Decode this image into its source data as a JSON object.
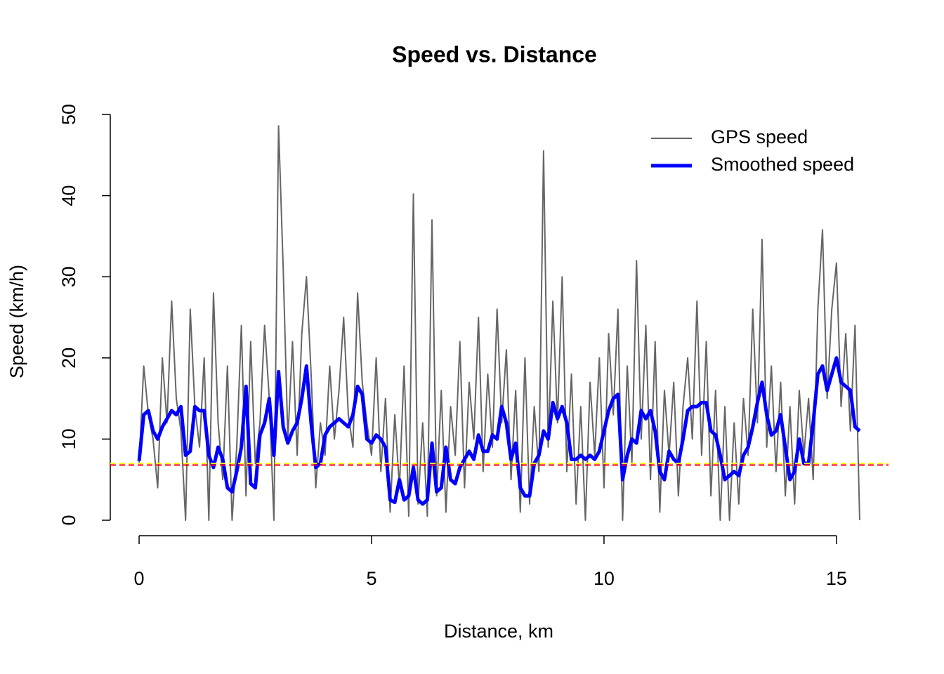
{
  "chart_data": {
    "type": "line",
    "title": "Speed vs. Distance",
    "x_label": "Distance, km",
    "y_label": "Speed (km/h)",
    "x": [
      0,
      0.1,
      0.2,
      0.3,
      0.4,
      0.5,
      0.6,
      0.7,
      0.8,
      0.9,
      1,
      1.1,
      1.2,
      1.3,
      1.4,
      1.5,
      1.6,
      1.7,
      1.8,
      1.9,
      2,
      2.1,
      2.2,
      2.3,
      2.4,
      2.5,
      2.6,
      2.7,
      2.8,
      2.9,
      3,
      3.1,
      3.2,
      3.3,
      3.4,
      3.5,
      3.6,
      3.7,
      3.8,
      3.9,
      4,
      4.1,
      4.2,
      4.3,
      4.4,
      4.5,
      4.6,
      4.7,
      4.8,
      4.9,
      5,
      5.1,
      5.2,
      5.3,
      5.4,
      5.5,
      5.6,
      5.7,
      5.8,
      5.9,
      6,
      6.1,
      6.2,
      6.3,
      6.4,
      6.5,
      6.6,
      6.7,
      6.8,
      6.9,
      7,
      7.1,
      7.2,
      7.3,
      7.4,
      7.5,
      7.6,
      7.7,
      7.8,
      7.9,
      8,
      8.1,
      8.2,
      8.3,
      8.4,
      8.5,
      8.6,
      8.7,
      8.8,
      8.9,
      9,
      9.1,
      9.2,
      9.3,
      9.4,
      9.5,
      9.6,
      9.7,
      9.8,
      9.9,
      10,
      10.1,
      10.2,
      10.3,
      10.4,
      10.5,
      10.6,
      10.7,
      10.8,
      10.9,
      11,
      11.1,
      11.2,
      11.3,
      11.4,
      11.5,
      11.6,
      11.7,
      11.8,
      11.9,
      12,
      12.1,
      12.2,
      12.3,
      12.4,
      12.5,
      12.6,
      12.7,
      12.8,
      12.9,
      13,
      13.1,
      13.2,
      13.3,
      13.4,
      13.5,
      13.6,
      13.7,
      13.8,
      13.9,
      14,
      14.1,
      14.2,
      14.3,
      14.4,
      14.5,
      14.6,
      14.7,
      14.8,
      14.9,
      15,
      15.1,
      15.2,
      15.3,
      15.4,
      15.5
    ],
    "series": [
      {
        "name": "GPS speed",
        "color": "#666666",
        "width": 2,
        "values": [
          7,
          19,
          13,
          10,
          4,
          20,
          12,
          27,
          15,
          11,
          0,
          26,
          14,
          9,
          20,
          0,
          28,
          12,
          5,
          19,
          0,
          9,
          24,
          3,
          22,
          7,
          12,
          24,
          15,
          0,
          48.6,
          31,
          10,
          22,
          8,
          23,
          30,
          18,
          4,
          12,
          8,
          19,
          10,
          16,
          25,
          13,
          9,
          28,
          17,
          12,
          8,
          20,
          6,
          15,
          1,
          13,
          4,
          19,
          0.5,
          40.2,
          2,
          12,
          0.5,
          37,
          3,
          16,
          1,
          14,
          8,
          22,
          4,
          17,
          10,
          25,
          6,
          18,
          9,
          26,
          12,
          21,
          5,
          16,
          1,
          20,
          2,
          14,
          6,
          45.5,
          9,
          27,
          12,
          30,
          6,
          18,
          2,
          14,
          0,
          17,
          8,
          20,
          4,
          23,
          13,
          26,
          0,
          19,
          7,
          32,
          10,
          24,
          5,
          22,
          1,
          16,
          8,
          17,
          3,
          14,
          20,
          10,
          27,
          8,
          22,
          3,
          16,
          0,
          14,
          0,
          12,
          2,
          15,
          8,
          26,
          12,
          34.6,
          9,
          19,
          6,
          17,
          3,
          14,
          2,
          16,
          8,
          15,
          5,
          26,
          35.8,
          15,
          26,
          31.7,
          14,
          23,
          11,
          24,
          0
        ]
      },
      {
        "name": "Smoothed speed",
        "color": "#0000ff",
        "width": 5,
        "values": [
          7.3,
          13,
          13.5,
          11,
          10,
          11.5,
          12.5,
          13.5,
          13,
          14,
          8,
          8.5,
          14,
          13.5,
          13.5,
          8,
          6.5,
          9,
          7.5,
          4,
          3.5,
          6,
          9,
          16.5,
          4.5,
          4,
          10.5,
          12,
          15,
          8,
          18.3,
          11.5,
          9.5,
          11,
          12,
          15,
          19,
          12,
          6.5,
          7,
          10.5,
          11.5,
          12,
          12.5,
          12,
          11.5,
          13,
          16.5,
          15.5,
          10,
          9.5,
          10.5,
          10,
          9,
          2.5,
          2.2,
          5,
          2.5,
          3,
          6.5,
          2.5,
          2,
          2.5,
          9.5,
          3.5,
          4,
          9,
          5,
          4.5,
          6.5,
          7.5,
          8.5,
          7.5,
          10.5,
          8.5,
          8.5,
          10.5,
          10,
          14,
          12,
          7.5,
          9.5,
          4,
          3,
          3,
          7,
          8,
          11,
          10,
          14.5,
          12.5,
          14,
          12,
          7.5,
          7.5,
          8,
          7.5,
          8,
          7.5,
          8.5,
          11,
          13.5,
          15,
          15.5,
          5,
          8,
          10,
          9.5,
          13.5,
          12.5,
          13.5,
          11,
          6,
          5,
          8.5,
          7.5,
          7,
          10,
          13.5,
          14,
          14,
          14.5,
          14.5,
          11,
          10.5,
          8,
          5,
          5.5,
          6,
          5.5,
          8,
          9,
          11.5,
          14.5,
          17,
          13,
          10.5,
          11,
          13,
          9,
          5,
          6,
          10,
          7,
          7,
          12,
          18,
          19,
          16,
          18,
          20,
          17,
          16.5,
          16,
          11.5,
          11
        ]
      }
    ],
    "hlines": [
      {
        "value": 7.0,
        "color": "#ffff00"
      },
      {
        "value": 6.8,
        "color": "#ff0000"
      }
    ],
    "xlim": [
      -0.62,
      16.12
    ],
    "ylim": [
      -1.95,
      50.65
    ],
    "xticks": [
      0,
      5,
      10,
      15
    ],
    "yticks": [
      0,
      10,
      20,
      30,
      40,
      50
    ],
    "legend": "topright"
  }
}
